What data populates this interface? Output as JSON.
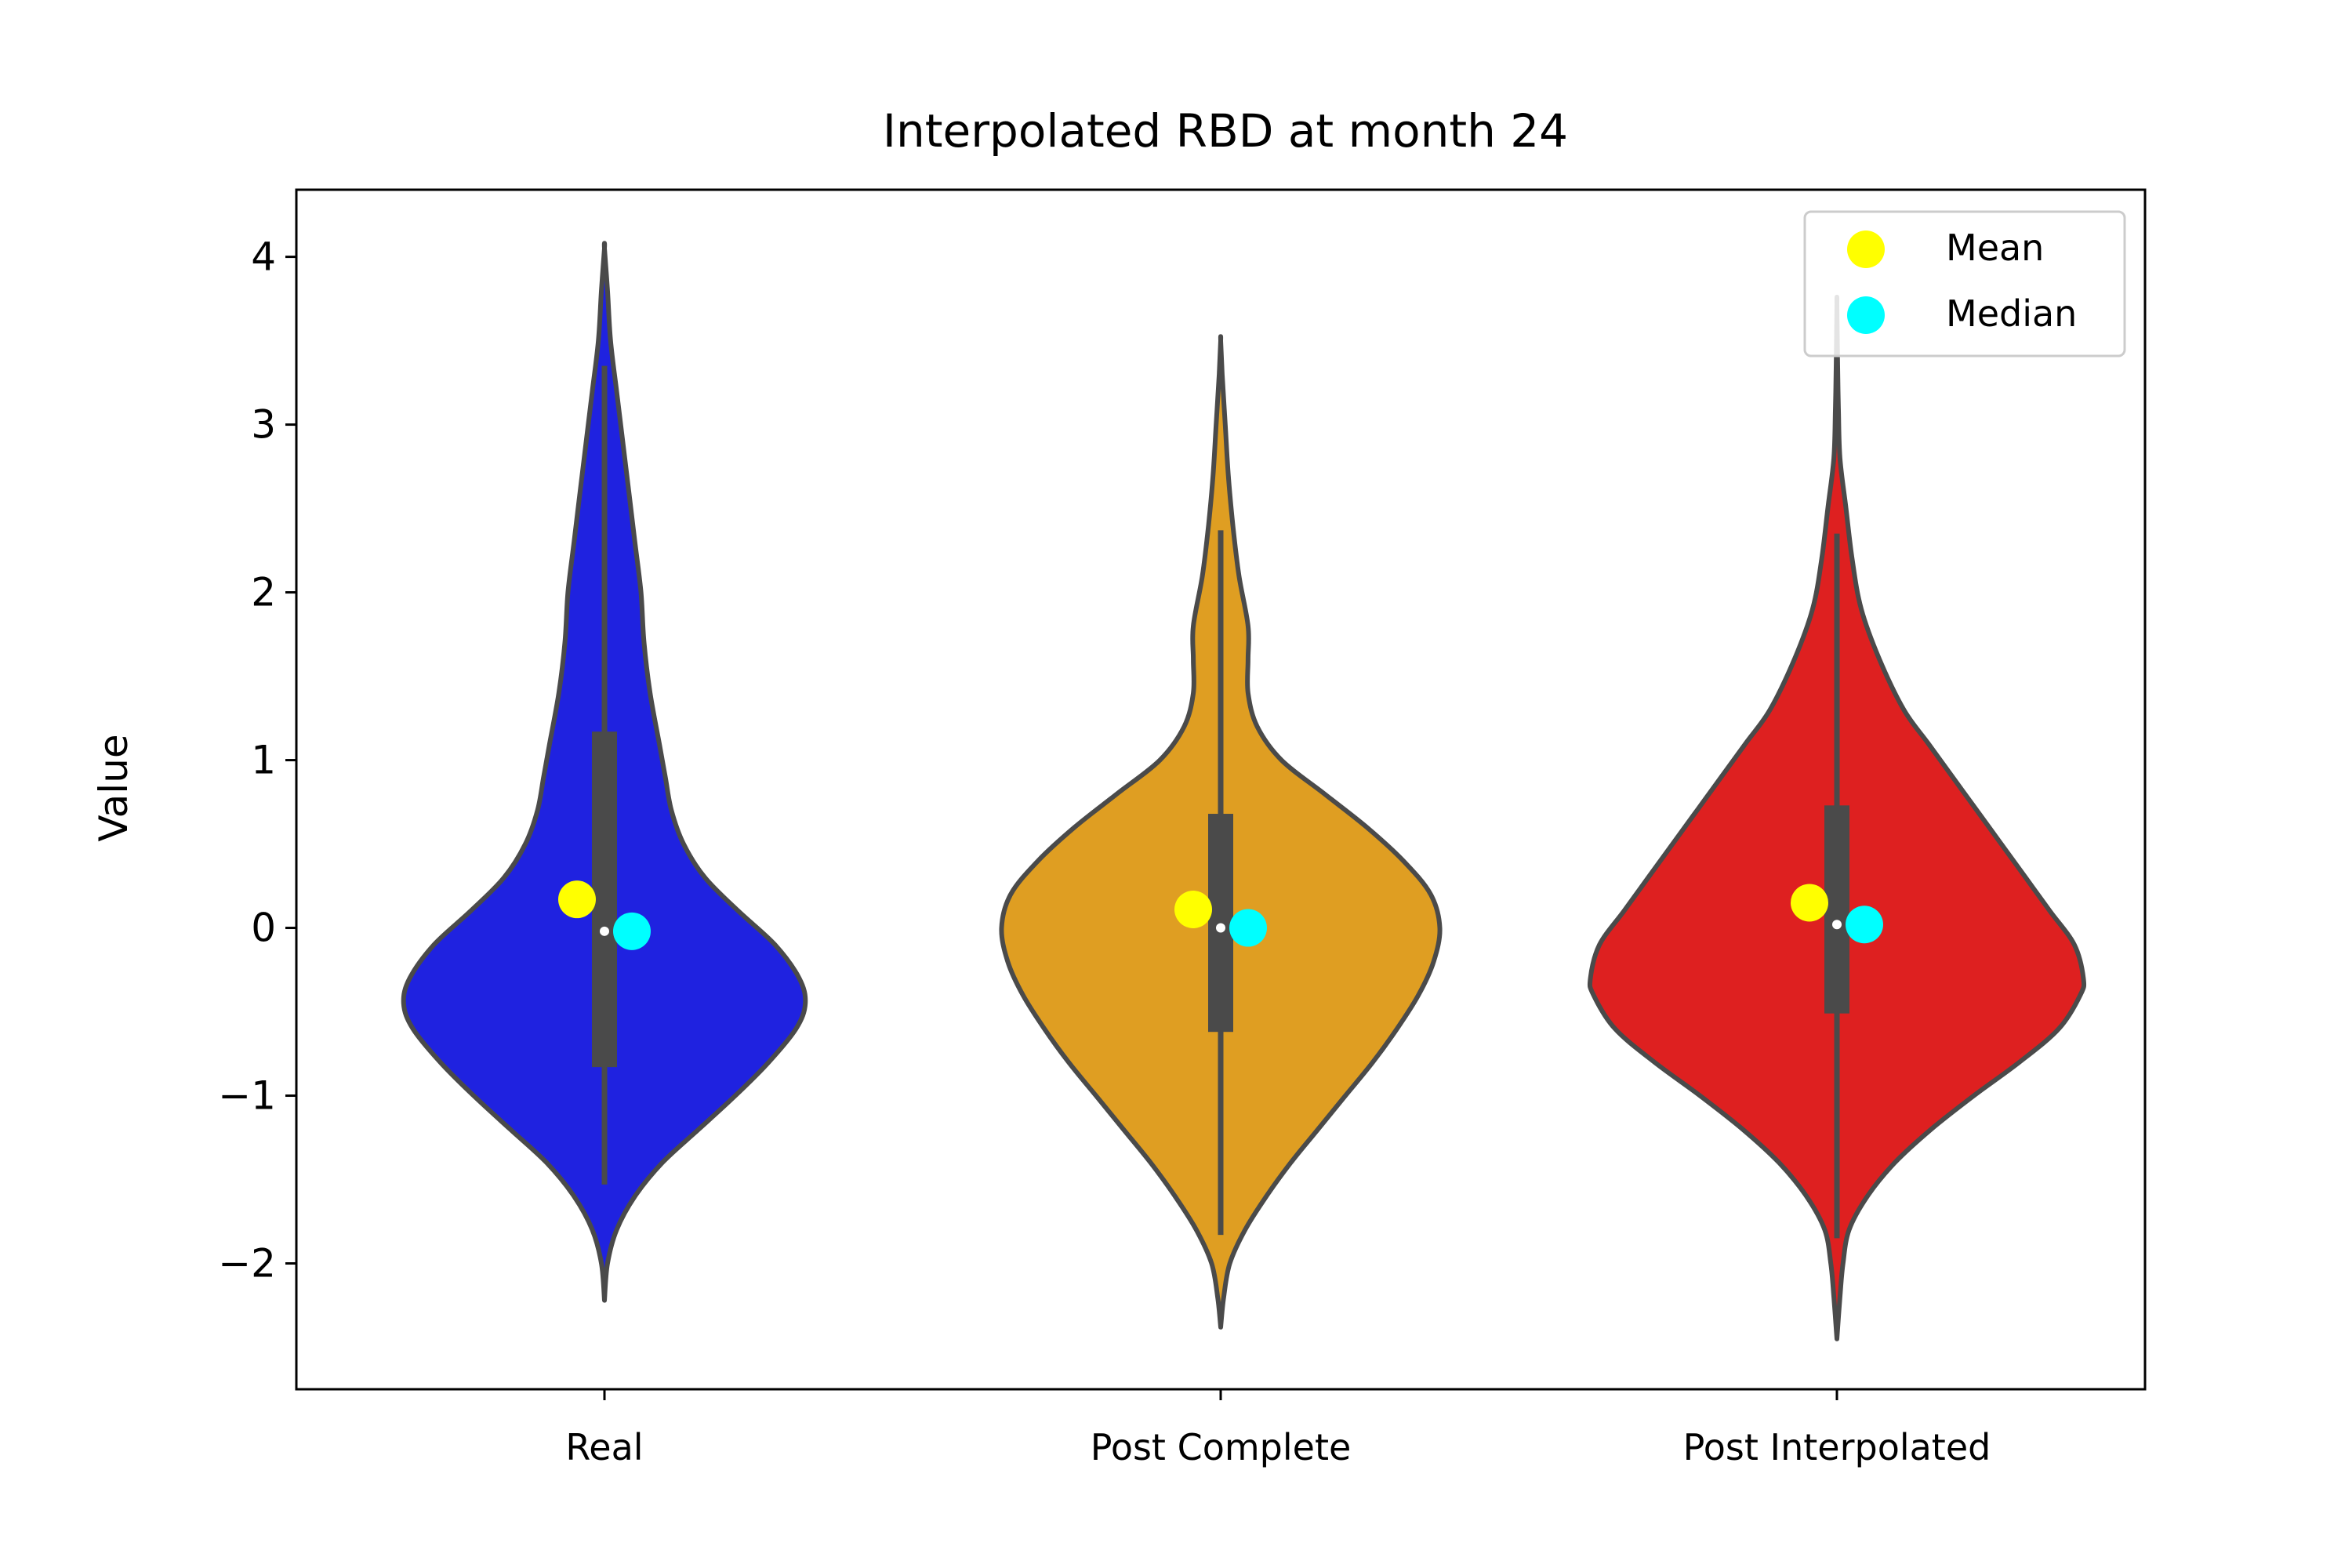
{
  "chart_data": {
    "type": "violin",
    "title": "Interpolated RBD at month 24",
    "xlabel": "",
    "ylabel": "Value",
    "ylim": [
      -2.75,
      4.4
    ],
    "yticks": [
      -2,
      -1,
      0,
      1,
      2,
      3,
      4
    ],
    "ytick_labels": [
      "−2",
      "−1",
      "0",
      "1",
      "2",
      "3",
      "4"
    ],
    "grid": false,
    "legend": {
      "placement": "top-right",
      "entries": [
        {
          "label": "Mean",
          "color": "#ffff00"
        },
        {
          "label": "Median",
          "color": "#00ffff"
        }
      ]
    },
    "outline_color": "#4a4a4a",
    "categories": [
      "Real",
      "Post Complete",
      "Post Interpolated"
    ],
    "series": [
      {
        "category": "Real",
        "color": "#1f22e0",
        "mean": 0.17,
        "median": -0.02,
        "q1": -0.83,
        "q3": 1.17,
        "whisker_low": -1.53,
        "whisker_high": 3.35,
        "extent": [
          -2.22,
          4.05
        ],
        "density": [
          [
            -2.22,
            0.0
          ],
          [
            -2.0,
            0.01
          ],
          [
            -1.8,
            0.04
          ],
          [
            -1.6,
            0.1
          ],
          [
            -1.4,
            0.19
          ],
          [
            -1.2,
            0.31
          ],
          [
            -1.0,
            0.43
          ],
          [
            -0.8,
            0.54
          ],
          [
            -0.6,
            0.63
          ],
          [
            -0.45,
            0.66
          ],
          [
            -0.3,
            0.64
          ],
          [
            -0.1,
            0.56
          ],
          [
            0.1,
            0.44
          ],
          [
            0.3,
            0.33
          ],
          [
            0.5,
            0.26
          ],
          [
            0.7,
            0.22
          ],
          [
            0.9,
            0.2
          ],
          [
            1.1,
            0.18
          ],
          [
            1.4,
            0.15
          ],
          [
            1.7,
            0.13
          ],
          [
            2.0,
            0.12
          ],
          [
            2.3,
            0.1
          ],
          [
            2.6,
            0.08
          ],
          [
            2.9,
            0.06
          ],
          [
            3.2,
            0.04
          ],
          [
            3.5,
            0.02
          ],
          [
            3.8,
            0.01
          ],
          [
            4.05,
            0.0
          ]
        ]
      },
      {
        "category": "Post Complete",
        "color": "#df9e22",
        "mean": 0.11,
        "median": 0.0,
        "q1": -0.62,
        "q3": 0.68,
        "whisker_low": -1.83,
        "whisker_high": 2.37,
        "extent": [
          -2.38,
          3.5
        ],
        "density": [
          [
            -2.38,
            0.0
          ],
          [
            -2.2,
            0.01
          ],
          [
            -2.0,
            0.03
          ],
          [
            -1.8,
            0.08
          ],
          [
            -1.6,
            0.15
          ],
          [
            -1.4,
            0.23
          ],
          [
            -1.2,
            0.32
          ],
          [
            -1.0,
            0.41
          ],
          [
            -0.8,
            0.5
          ],
          [
            -0.6,
            0.58
          ],
          [
            -0.4,
            0.65
          ],
          [
            -0.2,
            0.7
          ],
          [
            0.0,
            0.72
          ],
          [
            0.2,
            0.69
          ],
          [
            0.4,
            0.6
          ],
          [
            0.6,
            0.48
          ],
          [
            0.8,
            0.34
          ],
          [
            1.0,
            0.2
          ],
          [
            1.2,
            0.12
          ],
          [
            1.4,
            0.09
          ],
          [
            1.6,
            0.09
          ],
          [
            1.8,
            0.09
          ],
          [
            2.1,
            0.06
          ],
          [
            2.4,
            0.04
          ],
          [
            2.7,
            0.025
          ],
          [
            3.0,
            0.015
          ],
          [
            3.3,
            0.005
          ],
          [
            3.5,
            0.0
          ]
        ]
      },
      {
        "category": "Post Interpolated",
        "color": "#de2020",
        "mean": 0.15,
        "median": 0.02,
        "q1": -0.51,
        "q3": 0.73,
        "whisker_low": -1.85,
        "whisker_high": 2.35,
        "extent": [
          -2.45,
          3.72
        ],
        "density": [
          [
            -2.45,
            0.0
          ],
          [
            -2.2,
            0.01
          ],
          [
            -2.0,
            0.02
          ],
          [
            -1.8,
            0.04
          ],
          [
            -1.6,
            0.1
          ],
          [
            -1.4,
            0.19
          ],
          [
            -1.2,
            0.31
          ],
          [
            -1.0,
            0.45
          ],
          [
            -0.8,
            0.6
          ],
          [
            -0.6,
            0.73
          ],
          [
            -0.4,
            0.8
          ],
          [
            -0.3,
            0.81
          ],
          [
            -0.1,
            0.78
          ],
          [
            0.1,
            0.7
          ],
          [
            0.3,
            0.62
          ],
          [
            0.5,
            0.54
          ],
          [
            0.7,
            0.46
          ],
          [
            0.9,
            0.38
          ],
          [
            1.1,
            0.3
          ],
          [
            1.3,
            0.22
          ],
          [
            1.6,
            0.14
          ],
          [
            1.9,
            0.08
          ],
          [
            2.2,
            0.05
          ],
          [
            2.5,
            0.03
          ],
          [
            2.8,
            0.01
          ],
          [
            3.1,
            0.005
          ],
          [
            3.4,
            0.002
          ],
          [
            3.72,
            0.0
          ]
        ]
      }
    ]
  }
}
